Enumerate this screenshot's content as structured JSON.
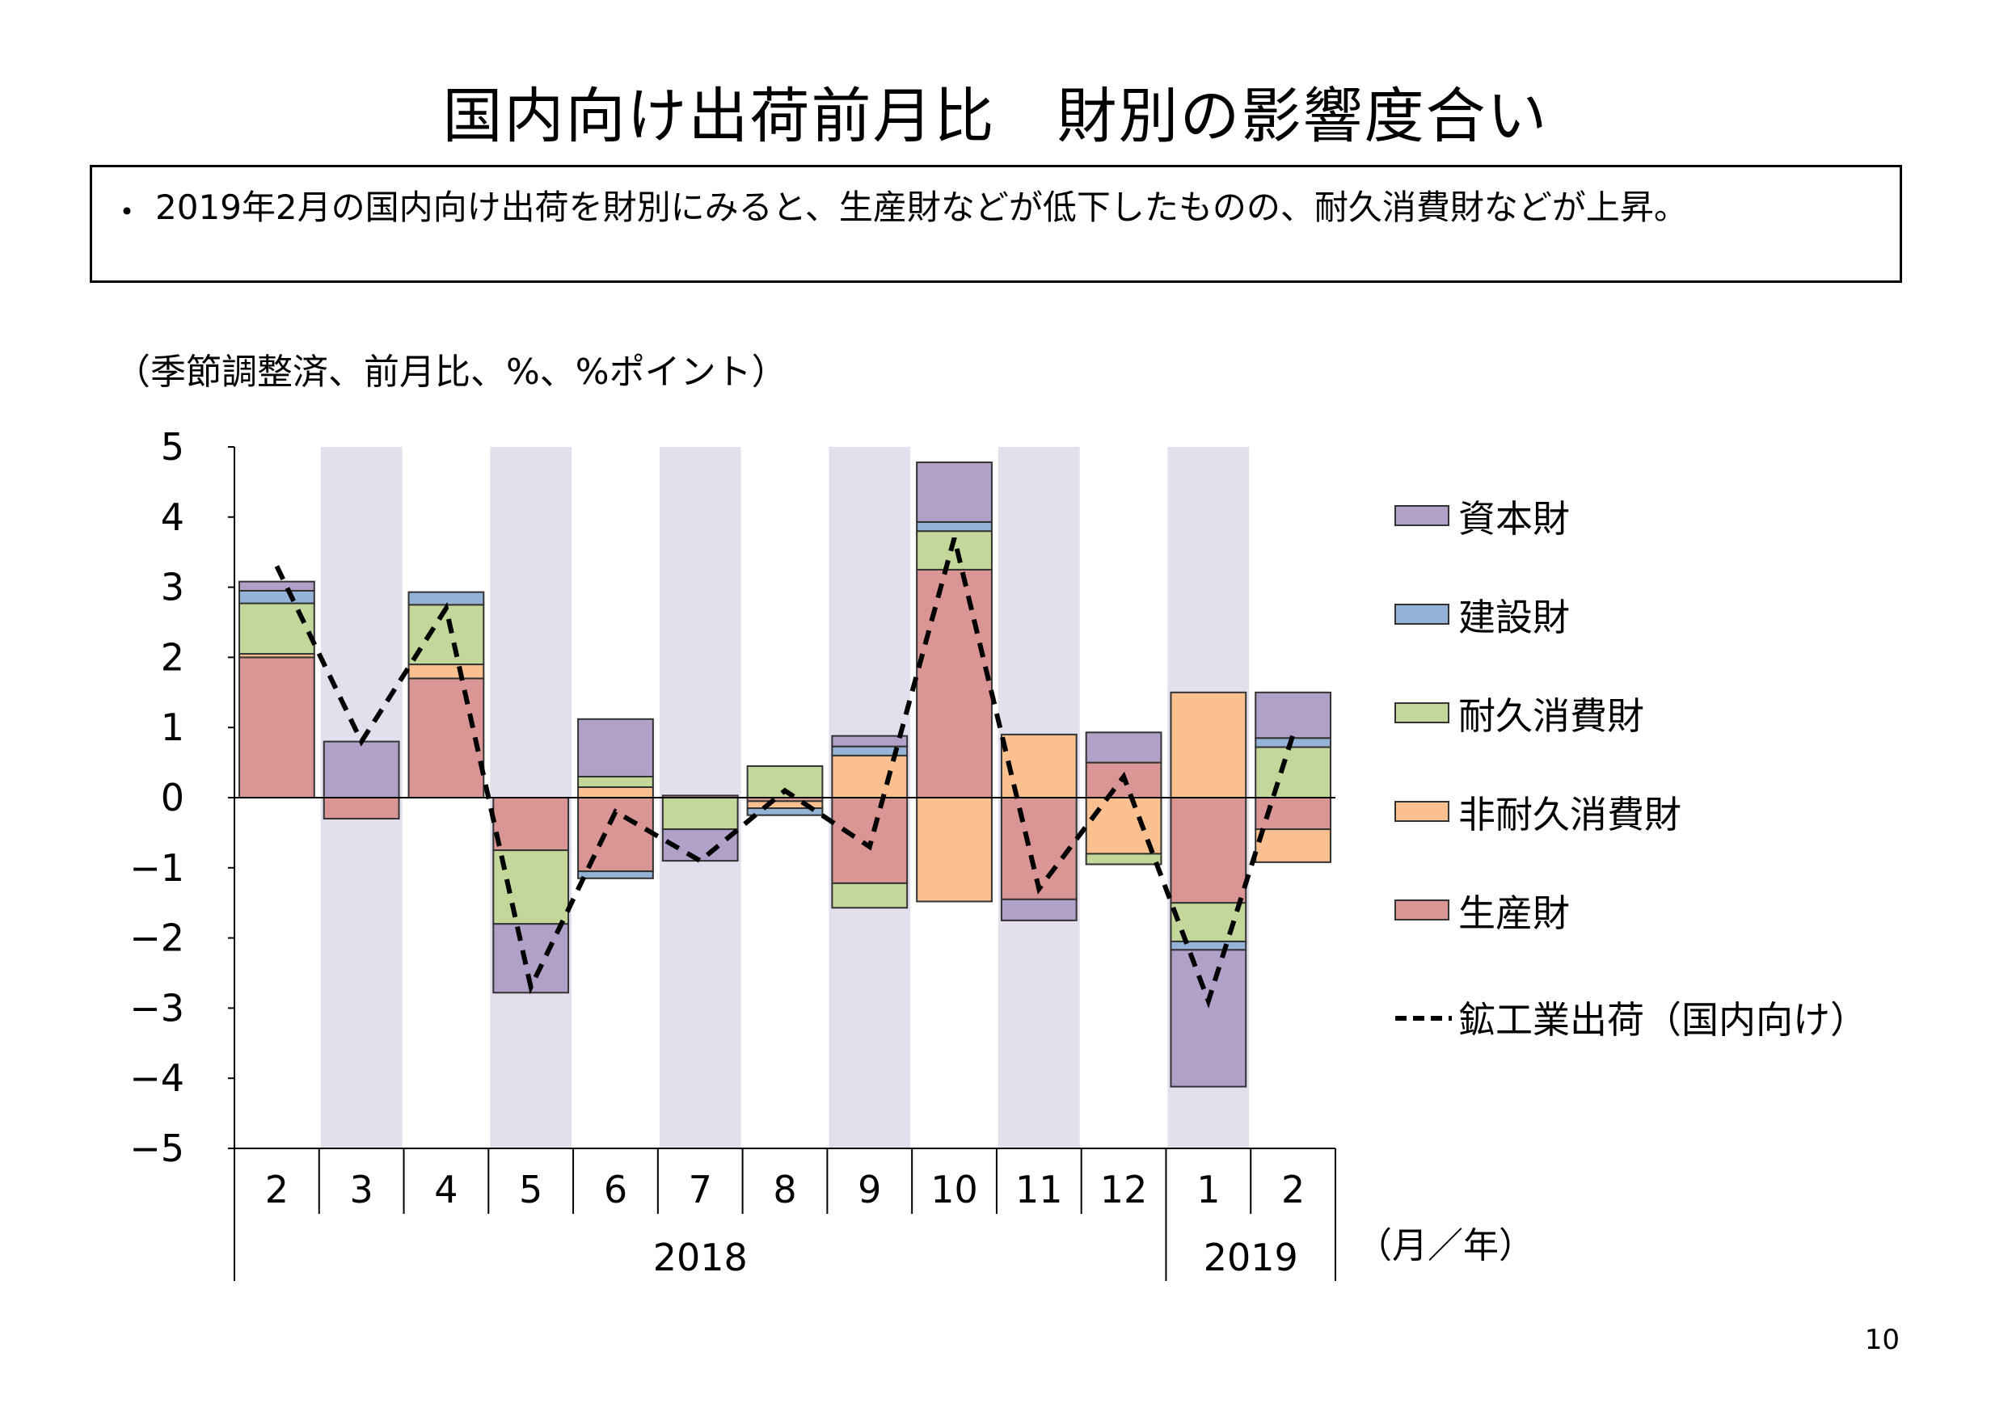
{
  "page": {
    "title": "国内向け出荷前月比　財別の影響度合い",
    "bullet": "・",
    "summary": "2019年2月の国内向け出荷を財別にみると、生産財などが低下したものの、耐久消費財などが上昇。",
    "unit_note": "（季節調整済、前月比、%、%ポイント）",
    "page_number": "10"
  },
  "chart_data": {
    "type": "bar",
    "stacked": true,
    "categories": [
      "2",
      "3",
      "4",
      "5",
      "6",
      "7",
      "8",
      "9",
      "10",
      "11",
      "12",
      "1",
      "2"
    ],
    "year_groups": [
      {
        "label": "2018",
        "start": 0,
        "end": 10
      },
      {
        "label": "2019",
        "start": 11,
        "end": 12
      }
    ],
    "xlabel": "（月／年）",
    "ylim": [
      -5,
      5
    ],
    "yticks": [
      "5",
      "4",
      "3",
      "2",
      "1",
      "0",
      "−1",
      "−2",
      "−3",
      "−4",
      "−5"
    ],
    "shaded_categories": [
      1,
      3,
      5,
      7,
      9,
      11
    ],
    "shade_color": "#e4dfec",
    "series": [
      {
        "name": "生産財",
        "color": "#da9694",
        "values": [
          2.0,
          -0.3,
          1.7,
          -0.75,
          -1.05,
          0.03,
          -0.05,
          -1.22,
          3.25,
          -1.45,
          0.5,
          -1.5,
          -0.45
        ]
      },
      {
        "name": "非耐久消費財",
        "color": "#fac090",
        "values": [
          0.05,
          0.0,
          0.2,
          0.0,
          0.15,
          0.0,
          -0.1,
          0.6,
          -1.48,
          0.9,
          -0.8,
          1.5,
          -0.47
        ]
      },
      {
        "name": "耐久消費財",
        "color": "#c4d79b",
        "values": [
          0.72,
          0.0,
          0.85,
          -1.05,
          0.15,
          -0.45,
          0.45,
          -0.35,
          0.55,
          0.0,
          -0.15,
          -0.55,
          0.72
        ]
      },
      {
        "name": "建設財",
        "color": "#95b3d7",
        "values": [
          0.18,
          0.0,
          0.18,
          0.0,
          -0.1,
          0.0,
          -0.1,
          0.13,
          0.13,
          0.0,
          0.0,
          -0.12,
          0.13
        ]
      },
      {
        "name": "資本財",
        "color": "#b1a0c7",
        "values": [
          0.13,
          0.8,
          0.0,
          -0.98,
          0.82,
          -0.45,
          0.0,
          0.15,
          0.85,
          -0.3,
          0.43,
          -1.95,
          0.65
        ]
      }
    ],
    "line": {
      "name": "鉱工業出荷（国内向け）",
      "style": "dashed",
      "color": "#000000",
      "values": [
        3.3,
        0.8,
        2.7,
        -2.7,
        -0.2,
        -0.9,
        0.1,
        -0.7,
        3.7,
        -1.3,
        0.3,
        -2.9,
        0.9
      ]
    },
    "legend_position": "right"
  }
}
